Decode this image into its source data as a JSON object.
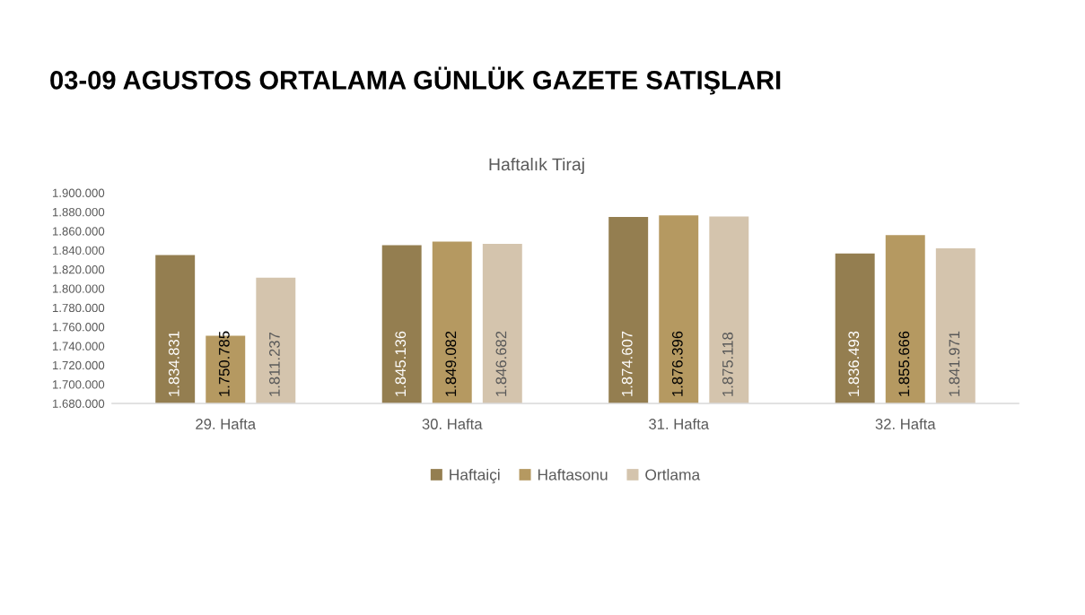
{
  "chart_data": {
    "type": "bar",
    "title": "03-09 AGUSTOS ORTALAMA GÜNLÜK GAZETE SATIŞLARI",
    "subtitle": "Haftalık Tiraj",
    "categories": [
      "29. Hafta",
      "30. Hafta",
      "31. Hafta",
      "32. Hafta"
    ],
    "series": [
      {
        "name": "Haftaiçi",
        "color": "#947e50",
        "values": [
          1834831,
          1845136,
          1874607,
          1836493
        ],
        "value_labels": [
          "1.834.831",
          "1.845.136",
          "1.874.607",
          "1.836.493"
        ]
      },
      {
        "name": "Haftasonu",
        "color": "#b59961",
        "values": [
          1750785,
          1849082,
          1876396,
          1855666
        ],
        "value_labels": [
          "1.750.785",
          "1.849.082",
          "1.876.396",
          "1.855.666"
        ]
      },
      {
        "name": "Ortlama",
        "color": "#d4c4ad",
        "values": [
          1811237,
          1846682,
          1875118,
          1841971
        ],
        "value_labels": [
          "1.811.237",
          "1.846.682",
          "1.875.118",
          "1.841.971"
        ]
      }
    ],
    "ylim": [
      1680000,
      1900000
    ],
    "yticks": [
      {
        "value": 1680000,
        "label": "1.680.000"
      },
      {
        "value": 1700000,
        "label": "1.700.000"
      },
      {
        "value": 1720000,
        "label": "1.720.000"
      },
      {
        "value": 1740000,
        "label": "1.740.000"
      },
      {
        "value": 1760000,
        "label": "1.760.000"
      },
      {
        "value": 1780000,
        "label": "1.780.000"
      },
      {
        "value": 1800000,
        "label": "1.800.000"
      },
      {
        "value": 1820000,
        "label": "1.820.000"
      },
      {
        "value": 1840000,
        "label": "1.840.000"
      },
      {
        "value": 1860000,
        "label": "1.860.000"
      },
      {
        "value": 1880000,
        "label": "1.880.000"
      },
      {
        "value": 1900000,
        "label": "1.900.000"
      }
    ],
    "legend": "bottom"
  }
}
